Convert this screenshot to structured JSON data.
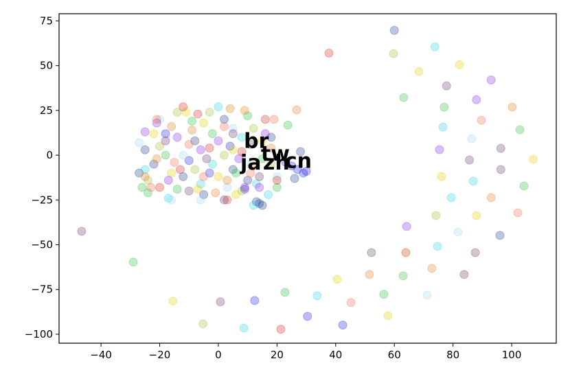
{
  "chart_data": {
    "type": "scatter",
    "xlim": [
      -54.3,
      115.2
    ],
    "ylim": [
      -105,
      79
    ],
    "xticks": [
      {
        "value": -40,
        "label": "−40"
      },
      {
        "value": -20,
        "label": "−20"
      },
      0,
      20,
      40,
      60,
      80,
      100
    ],
    "yticks": [
      {
        "value": -100,
        "label": "−100"
      },
      {
        "value": -75,
        "label": "−75"
      },
      {
        "value": -50,
        "label": "−50"
      },
      {
        "value": -25,
        "label": "−25"
      },
      0,
      25,
      50,
      75
    ],
    "alpha": 0.3,
    "series": [
      {
        "color": "#1f3f8f",
        "x": [
          60,
          96,
          -27,
          -25,
          -22,
          -12,
          -5,
          5,
          10,
          18,
          28,
          26,
          14,
          15,
          13,
          -8,
          2
        ],
        "y": [
          69.7,
          -44.8,
          -10,
          3,
          -5,
          -12,
          -22,
          -8,
          -14,
          10,
          2,
          -13,
          -27,
          -28,
          -26,
          8,
          20
        ]
      },
      {
        "color": "#2020e0",
        "x": [
          12.4,
          30.4,
          42.4,
          25,
          27,
          29,
          23,
          30,
          9,
          -3,
          -18,
          4,
          -10
        ],
        "y": [
          -81.2,
          -90,
          -94.9,
          -6,
          -8,
          -10,
          -4,
          -9,
          -19,
          -10,
          12,
          5,
          -3
        ]
      },
      {
        "color": "#30d0e0",
        "x": [
          73.8,
          76.6,
          86.9,
          79.4,
          74.7,
          33.7,
          8.7,
          12,
          13,
          0,
          -17,
          -6,
          -25,
          8,
          -2,
          17
        ],
        "y": [
          60.5,
          15.7,
          -14.5,
          -23.7,
          -50.9,
          -78.5,
          -96.5,
          -28,
          -16,
          27,
          -24,
          -16,
          -8,
          10,
          -5,
          -22
        ]
      },
      {
        "color": "#a0d8ef",
        "x": [
          86.4,
          81.7,
          71.2,
          -27,
          -16,
          -6,
          5,
          -12,
          10,
          20,
          -20,
          3
        ],
        "y": [
          9.2,
          -42.9,
          -78.1,
          7,
          -25,
          -25,
          15,
          0,
          -5,
          -12,
          20,
          -18
        ]
      },
      {
        "color": "#30c040",
        "x": [
          63.2,
          77,
          102.8,
          23.7,
          104.2,
          -29,
          63,
          56.4,
          22.7,
          -26,
          -24,
          -14,
          -2,
          6,
          15,
          -9,
          20,
          -18,
          10
        ],
        "y": [
          32.2,
          26.8,
          14.2,
          16.8,
          -17.2,
          -59.7,
          -67.4,
          -77.7,
          -76.6,
          -18,
          -21,
          -19,
          12,
          -10,
          -2,
          19,
          -18,
          0,
          22
        ]
      },
      {
        "color": "#a0c030",
        "x": [
          59.7,
          74.2,
          -5.2,
          -14,
          -3,
          -20,
          8,
          18,
          -8,
          2,
          -24,
          12
        ],
        "y": [
          56.7,
          -33.7,
          -94.2,
          24,
          24,
          5,
          -20,
          -5,
          -8,
          0,
          -14,
          15
        ]
      },
      {
        "color": "#e0d000",
        "x": [
          68.4,
          82.2,
          107.3,
          76.1,
          88,
          40.5,
          -15.5,
          57.8,
          -11,
          -5,
          5,
          -16,
          0,
          15,
          -22,
          6,
          -7
        ],
        "y": [
          46.7,
          50.5,
          -2.3,
          -11.9,
          -33.7,
          -69.3,
          -81.5,
          -89.6,
          24,
          18,
          3,
          -10,
          -12,
          8,
          12,
          -22,
          -19
        ]
      },
      {
        "color": "#e08020",
        "x": [
          26.7,
          100.2,
          93,
          51.5,
          72.8,
          -21,
          -16,
          -1,
          4,
          9,
          12,
          -9,
          -25,
          18,
          3
        ],
        "y": [
          25.3,
          26.8,
          -23.7,
          -66.6,
          -63.2,
          -2,
          16,
          -21,
          26,
          25,
          -6,
          14,
          -12,
          4,
          -14
        ]
      },
      {
        "color": "#d03020",
        "x": [
          37.7,
          63.9,
          21.3,
          -12,
          -7,
          -20,
          3,
          8,
          -13,
          16,
          -3,
          20
        ],
        "y": [
          57,
          -54.4,
          -97.2,
          27,
          23,
          -18,
          -25,
          2,
          -8,
          20,
          4,
          -14
        ]
      },
      {
        "color": "#6a3a6a",
        "x": [
          77.8,
          96.3,
          85.6,
          96.3,
          52.2,
          87.6,
          83.8,
          0.7,
          -46.6,
          2,
          -10,
          -18,
          5,
          14,
          -4,
          11
        ],
        "y": [
          38.7,
          3.8,
          -2.7,
          -8,
          -54.4,
          -54.4,
          -66.6,
          -81.9,
          -42.5,
          -25,
          -20,
          8,
          12,
          -12,
          -2,
          6
        ]
      },
      {
        "color": "#8a2be2",
        "x": [
          93,
          88,
          75.4,
          64.2,
          -25,
          -21,
          -14,
          9,
          14,
          -6,
          16,
          0,
          -17,
          7
        ],
        "y": [
          42,
          31,
          3.1,
          -39.8,
          13,
          18,
          10,
          -18,
          -18,
          3,
          12,
          8,
          -14,
          -2
        ]
      },
      {
        "color": "#f07050",
        "x": [
          89.7,
          102.1,
          45.2,
          -21,
          -23,
          -5,
          11,
          19,
          -10,
          2,
          -15
        ],
        "y": [
          19.5,
          -32.2,
          -82.3,
          20,
          -18,
          -12,
          -10,
          20,
          6,
          16,
          -4
        ]
      }
    ],
    "annotations": [
      {
        "text": "br",
        "x": 8.7,
        "y": 4
      },
      {
        "text": "tw",
        "x": 14.5,
        "y": -3
      },
      {
        "text": "ja",
        "x": 7.5,
        "y": -8
      },
      {
        "text": "zh",
        "x": 15.2,
        "y": -8
      },
      {
        "text": "cn",
        "x": 22.7,
        "y": -7
      }
    ]
  }
}
